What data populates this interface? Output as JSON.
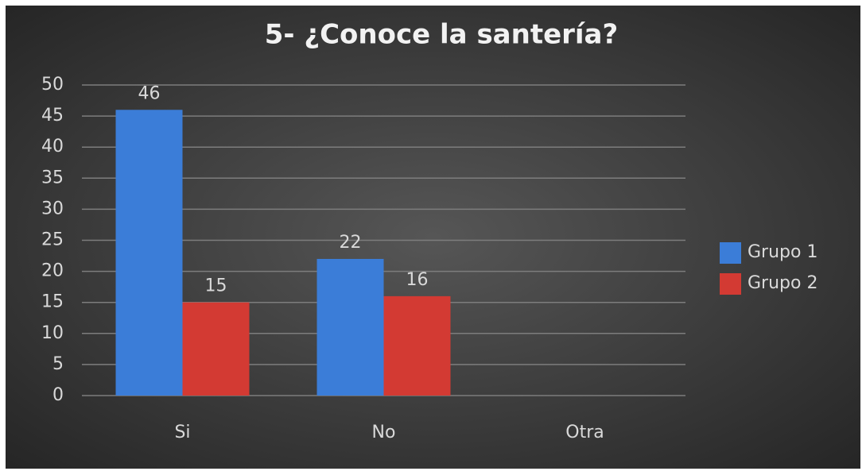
{
  "chart_data": {
    "type": "bar",
    "title": "5- ¿Conoce la santería?",
    "categories": [
      "Si",
      "No",
      "Otra"
    ],
    "series": [
      {
        "name": "Grupo 1",
        "color": "#3b7dd8",
        "values": [
          46,
          22,
          null
        ]
      },
      {
        "name": "Grupo 2",
        "color": "#d33a33",
        "values": [
          15,
          16,
          null
        ]
      }
    ],
    "ylim": [
      0,
      50
    ],
    "yticks": [
      0,
      5,
      10,
      15,
      20,
      25,
      30,
      35,
      40,
      45,
      50
    ],
    "grid": true,
    "legend": "right"
  }
}
